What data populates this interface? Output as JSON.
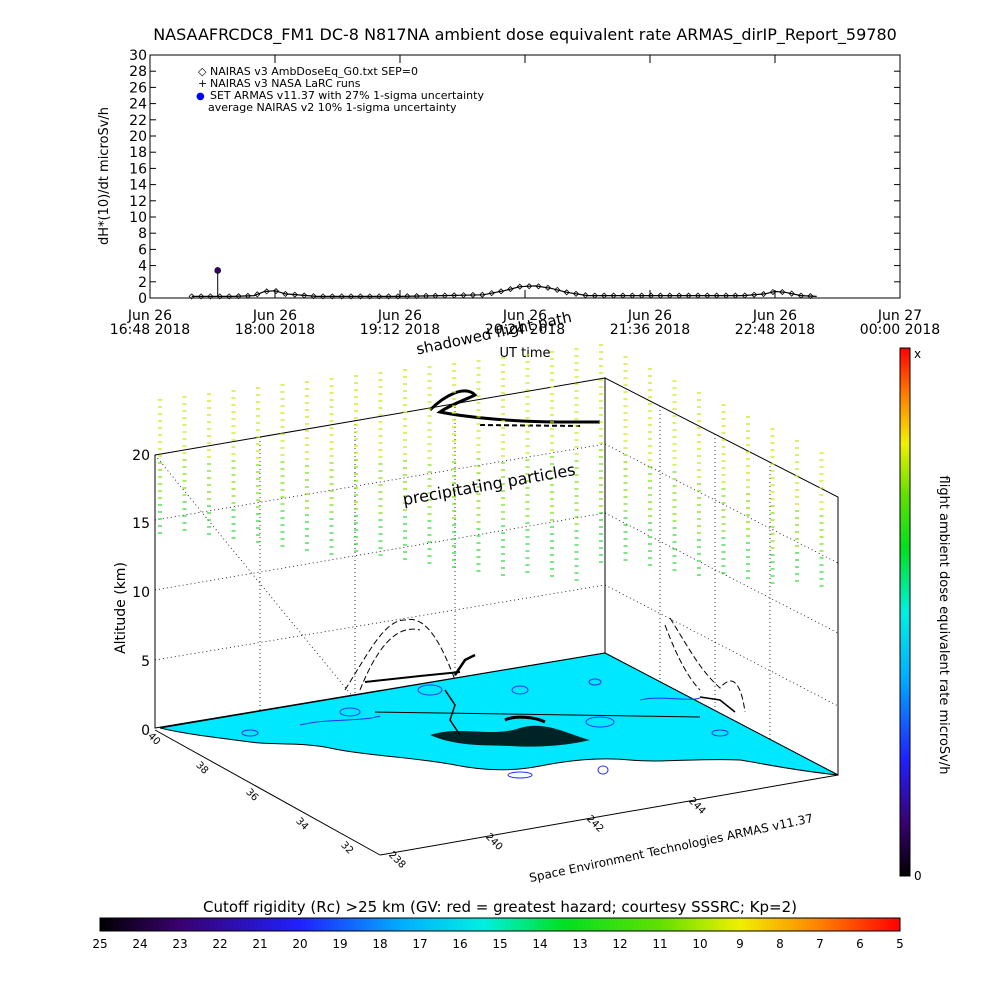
{
  "chart_data": [
    {
      "type": "line",
      "title": "NASAAFRCDC8_FM1 DC-8   N817NA ambient dose equivalent rate ARMAS_dirIP_Report_59780",
      "ylabel": "dH*(10)/dt microSv/h",
      "xlabel": "UT time",
      "ylim": [
        0,
        30
      ],
      "yticks": [
        "0",
        "2",
        "4",
        "6",
        "8",
        "10",
        "12",
        "14",
        "16",
        "18",
        "20",
        "22",
        "24",
        "26",
        "28",
        "30"
      ],
      "xtick_labels": [
        {
          "line1": "Jun 26",
          "line2": "16:48 2018"
        },
        {
          "line1": "Jun 26",
          "line2": "18:00 2018"
        },
        {
          "line1": "Jun 26",
          "line2": "19:12 2018"
        },
        {
          "line1": "Jun 26",
          "line2": "20:24 2018"
        },
        {
          "line1": "Jun 26",
          "line2": "21:36 2018"
        },
        {
          "line1": "Jun 26",
          "line2": "22:48 2018"
        },
        {
          "line1": "Jun 27",
          "line2": "00:00 2018"
        }
      ],
      "legend": [
        {
          "symbol": "◇",
          "label": "NAIRAS v3 AmbDoseEq_G0.txt SEP=0",
          "color": "#000000"
        },
        {
          "symbol": "+",
          "label": "NAIRAS v3 NASA LaRC runs",
          "color": "#000000"
        },
        {
          "symbol": "●",
          "label": "SET ARMAS v11.37 with 27% 1-sigma uncertainty",
          "color": "#0000ff"
        },
        {
          "symbol": "",
          "label": "average NAIRAS v2 10% 1-sigma uncertainty",
          "color": "#000000"
        }
      ],
      "legend_placement": "top-left",
      "series": [
        {
          "name": "NAIRAS v3 AmbDoseEq_G0.txt SEP=0",
          "x_hours": [
            17.2,
            17.4,
            17.6,
            17.8,
            17.9,
            18.0,
            18.1,
            18.4,
            18.8,
            19.2,
            19.6,
            20.0,
            20.2,
            20.35,
            20.5,
            20.65,
            20.8,
            21.0,
            21.4,
            21.8,
            22.2,
            22.5,
            22.7,
            22.8,
            22.9,
            23.05,
            23.2
          ],
          "y": [
            0.2,
            0.2,
            0.2,
            0.3,
            0.8,
            0.9,
            0.5,
            0.2,
            0.2,
            0.2,
            0.3,
            0.4,
            0.9,
            1.4,
            1.5,
            1.2,
            0.7,
            0.3,
            0.3,
            0.3,
            0.3,
            0.3,
            0.5,
            0.8,
            0.7,
            0.3,
            0.2
          ]
        },
        {
          "name": "SET ARMAS v11.37 with 27% 1-sigma uncertainty",
          "spike": {
            "x_hours": 17.45,
            "y": 3.4
          }
        }
      ]
    },
    {
      "type": "scatter",
      "ylabel": "Altitude (km)",
      "z_ticks": [
        "0",
        "5",
        "10",
        "15",
        "20"
      ],
      "lat_ticks": [
        "40",
        "38",
        "36",
        "34",
        "32"
      ],
      "lon_ticks": [
        "238",
        "240",
        "242",
        "244"
      ],
      "annotations": {
        "shadowed": "shadowed flight path",
        "precipitating": "precipitating particles",
        "credit": "Space Environment Technologies ARMAS v11.37"
      },
      "colorbar": {
        "label": "flight ambient dose equivalent rate microSv/h",
        "top": "x",
        "bottom": "0"
      }
    },
    {
      "type": "heatmap",
      "title": "Cutoff rigidity (Rc) >25 km (GV: red = greatest hazard; courtesy SSSRC; Kp=2)",
      "tick_labels": [
        "25",
        "24",
        "23",
        "22",
        "21",
        "20",
        "19",
        "18",
        "17",
        "16",
        "15",
        "14",
        "13",
        "12",
        "11",
        "10",
        "9",
        "8",
        "7",
        "6",
        "5"
      ]
    }
  ]
}
